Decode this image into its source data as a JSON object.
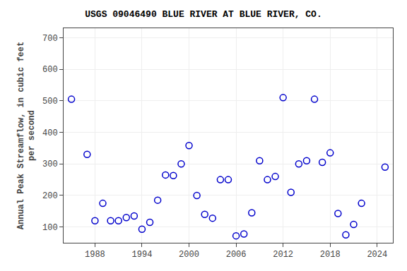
{
  "chart_data": {
    "type": "scatter",
    "title": "USGS 09046490 BLUE RIVER AT BLUE RIVER, CO.",
    "ylabel": "Annual Peak Streamflow, in cubic feet\nper second",
    "x": [
      1985,
      1987,
      1988,
      1989,
      1990,
      1991,
      1992,
      1993,
      1994,
      1995,
      1996,
      1997,
      1998,
      1999,
      2000,
      2001,
      2002,
      2003,
      2004,
      2005,
      2006,
      2007,
      2008,
      2009,
      2010,
      2011,
      2012,
      2013,
      2014,
      2015,
      2016,
      2017,
      2018,
      2019,
      2020,
      2021,
      2022,
      2025
    ],
    "values": [
      505,
      330,
      120,
      175,
      120,
      120,
      130,
      135,
      93,
      115,
      185,
      265,
      263,
      300,
      358,
      200,
      140,
      128,
      250,
      250,
      72,
      78,
      145,
      310,
      250,
      260,
      510,
      210,
      300,
      310,
      505,
      305,
      335,
      143,
      75,
      108,
      175,
      290
    ],
    "color": "#0000cc",
    "marker": "circle-open",
    "xlim": [
      1984,
      2026
    ],
    "ylim": [
      50,
      730
    ],
    "xticks": [
      1988,
      1994,
      2000,
      2006,
      2012,
      2018,
      2024
    ],
    "yticks": [
      100,
      200,
      300,
      400,
      500,
      600,
      700
    ],
    "grid": true
  }
}
